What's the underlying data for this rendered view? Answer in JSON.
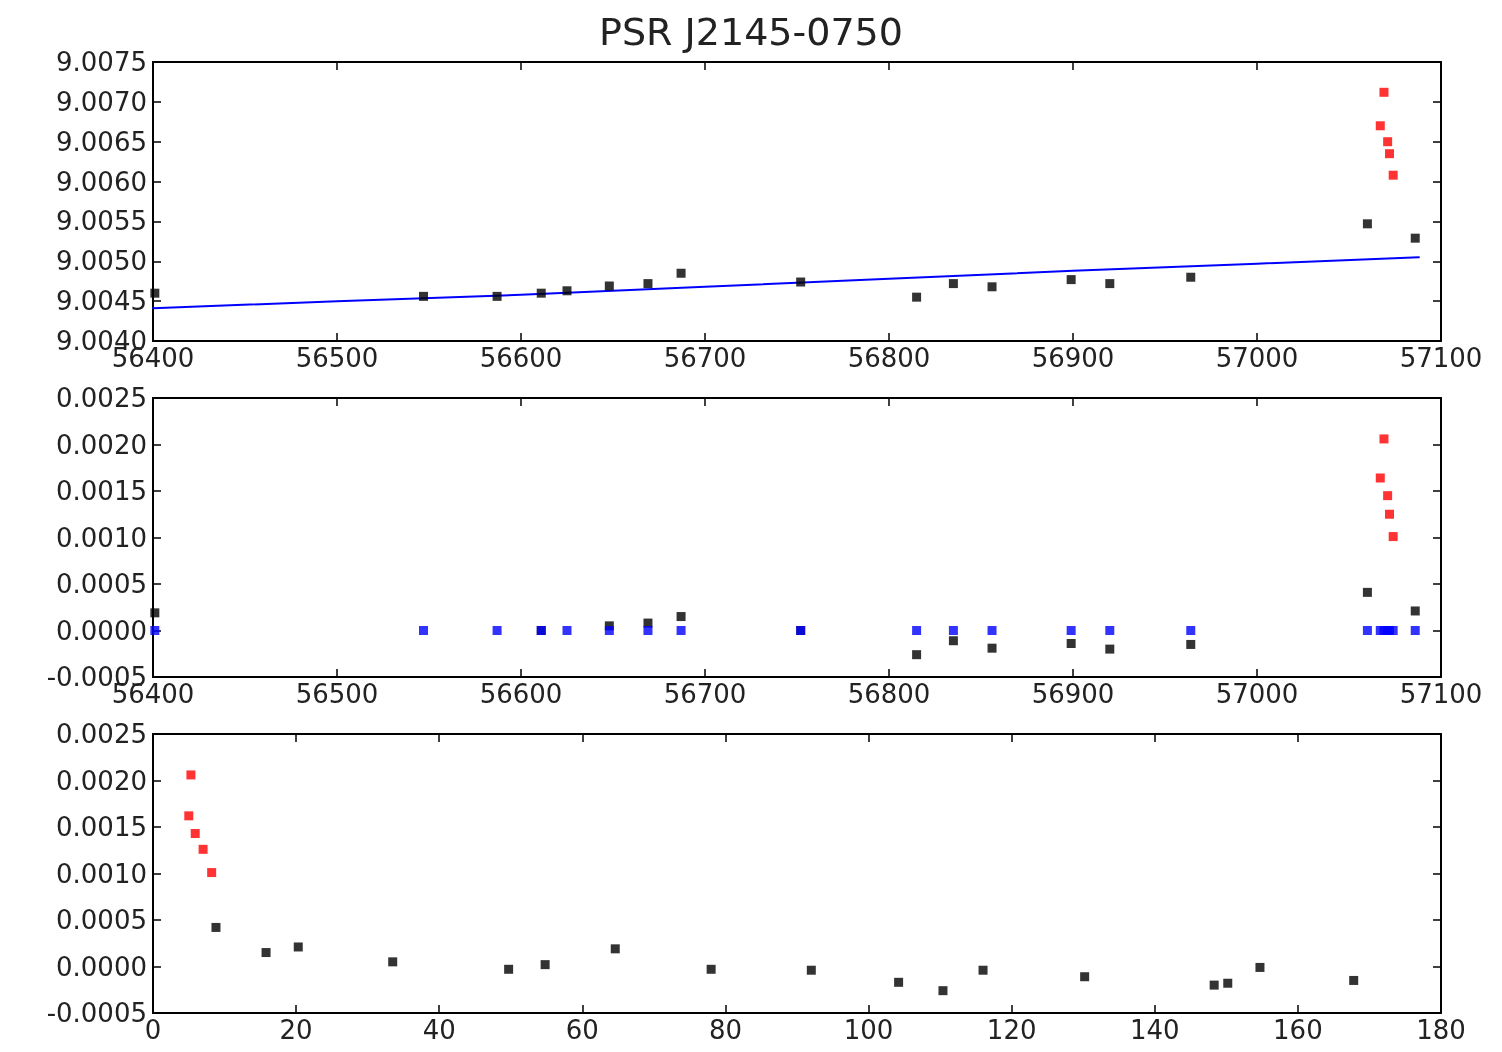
{
  "chart_data": [
    {
      "type": "scatter",
      "title": "PSR J2145-0750",
      "marker": "square",
      "xlim": [
        56400,
        57100
      ],
      "xticks": [
        56400,
        56500,
        56600,
        56700,
        56800,
        56900,
        57000,
        57100
      ],
      "ylim": [
        9.004,
        9.0075
      ],
      "yticks": [
        {
          "value": 9.004,
          "label": "9.0040"
        },
        9.0045,
        {
          "value": 9.005,
          "label": "9.0050"
        },
        9.0055,
        {
          "value": 9.006,
          "label": "9.0060"
        },
        9.0065,
        {
          "value": 9.007,
          "label": "9.0070"
        },
        9.0075
      ],
      "series": [
        {
          "color": "#0000ff",
          "type": "line",
          "marker": "none",
          "line_style": "solid",
          "x": [
            56400,
            56500,
            56600,
            56700,
            56800,
            56900,
            57000,
            57088
          ],
          "values": [
            9.00441,
            9.0045,
            9.00458,
            9.00468,
            9.00478,
            9.00488,
            9.00497,
            9.00505
          ]
        },
        {
          "color": "#000000",
          "x": [
            56401,
            56547,
            56587,
            56611,
            56625,
            56648,
            56669,
            56687,
            56752,
            56815,
            56835,
            56856,
            56899,
            56920,
            56964,
            57060,
            57086
          ],
          "values": [
            9.0046,
            9.00456,
            9.00456,
            9.0046,
            9.00463,
            9.00469,
            9.00472,
            9.00485,
            9.00474,
            9.00455,
            9.00472,
            9.00468,
            9.00477,
            9.00472,
            9.0048,
            9.00547,
            9.00529
          ]
        },
        {
          "color": "#ff0000",
          "x": [
            57069,
            57067,
            57071,
            57072,
            57074
          ],
          "values": [
            9.00712,
            9.0067,
            9.0065,
            9.00635,
            9.00608
          ]
        }
      ]
    },
    {
      "type": "scatter",
      "marker": "square",
      "xlim": [
        56400,
        57100
      ],
      "xticks": [
        56400,
        56500,
        56600,
        56700,
        56800,
        56900,
        57000,
        57100
      ],
      "ylim": [
        -0.0005,
        0.0025
      ],
      "yticks": [
        {
          "value": -0.0005,
          "label": "-0.0005"
        },
        {
          "value": 0,
          "label": "0.0000"
        },
        {
          "value": 0.0005,
          "label": "0.0005"
        },
        {
          "value": 0.001,
          "label": "0.0010"
        },
        {
          "value": 0.0015,
          "label": "0.0015"
        },
        {
          "value": 0.002,
          "label": "0.0020"
        },
        {
          "value": 0.0025,
          "label": "0.0025"
        }
      ],
      "series": [
        {
          "color": "#000000",
          "x": [
            56401,
            56547,
            56587,
            56611,
            56625,
            56648,
            56669,
            56687,
            56752,
            56815,
            56835,
            56856,
            56899,
            56920,
            56964,
            57060,
            57086
          ],
          "values": [
            0.00019,
            null,
            null,
            0,
            null,
            5e-05,
            8e-05,
            0.00015,
            0,
            -0.00026,
            -0.00011,
            -0.00019,
            -0.00014,
            -0.0002,
            -0.00015,
            0.00041,
            0.00021
          ]
        },
        {
          "color": "#0000ff",
          "x": [
            56401,
            56547,
            56587,
            56611,
            56625,
            56648,
            56669,
            56687,
            56752,
            56815,
            56835,
            56856,
            56899,
            56920,
            56964,
            57060,
            57067,
            57069,
            57071,
            57072,
            57074,
            57086
          ],
          "values": [
            0,
            0,
            0,
            0,
            0,
            0,
            0,
            0,
            0,
            0,
            0,
            0,
            0,
            0,
            0,
            0,
            0,
            0,
            0,
            0,
            0,
            0
          ]
        },
        {
          "color": "#ff0000",
          "x": [
            57069,
            57067,
            57071,
            57072,
            57074
          ],
          "values": [
            0.00206,
            0.00164,
            0.00145,
            0.00125,
            0.00101
          ]
        }
      ]
    },
    {
      "type": "scatter",
      "marker": "square",
      "xlim": [
        0,
        180
      ],
      "xticks": [
        0,
        20,
        40,
        60,
        80,
        100,
        120,
        140,
        160,
        180
      ],
      "ylim": [
        -0.0005,
        0.0025
      ],
      "yticks": [
        {
          "value": -0.0005,
          "label": "-0.0005"
        },
        {
          "value": 0,
          "label": "0.0000"
        },
        {
          "value": 0.0005,
          "label": "0.0005"
        },
        {
          "value": 0.001,
          "label": "0.0010"
        },
        {
          "value": 0.0015,
          "label": "0.0015"
        },
        {
          "value": 0.002,
          "label": "0.0020"
        },
        {
          "value": 0.0025,
          "label": "0.0025"
        }
      ],
      "series": [
        {
          "color": "#ff0000",
          "x": [
            5.3,
            5.0,
            5.9,
            7.0,
            8.2
          ],
          "values": [
            0.00206,
            0.00162,
            0.00143,
            0.00126,
            0.00101
          ]
        },
        {
          "color": "#000000",
          "x": [
            8.8,
            15.8,
            20.3,
            33.5,
            49.7,
            54.8,
            64.6,
            78,
            92,
            104.2,
            110.4,
            116,
            130.2,
            148.3,
            150.2,
            154.7,
            167.8
          ],
          "values": [
            0.00042,
            0.00015,
            0.00021,
            5e-05,
            -3e-05,
            2e-05,
            0.00019,
            -3e-05,
            -4e-05,
            -0.00017,
            -0.00026,
            -4e-05,
            -0.00011,
            -0.0002,
            -0.00018,
            -1e-05,
            -0.00015
          ]
        }
      ]
    }
  ]
}
